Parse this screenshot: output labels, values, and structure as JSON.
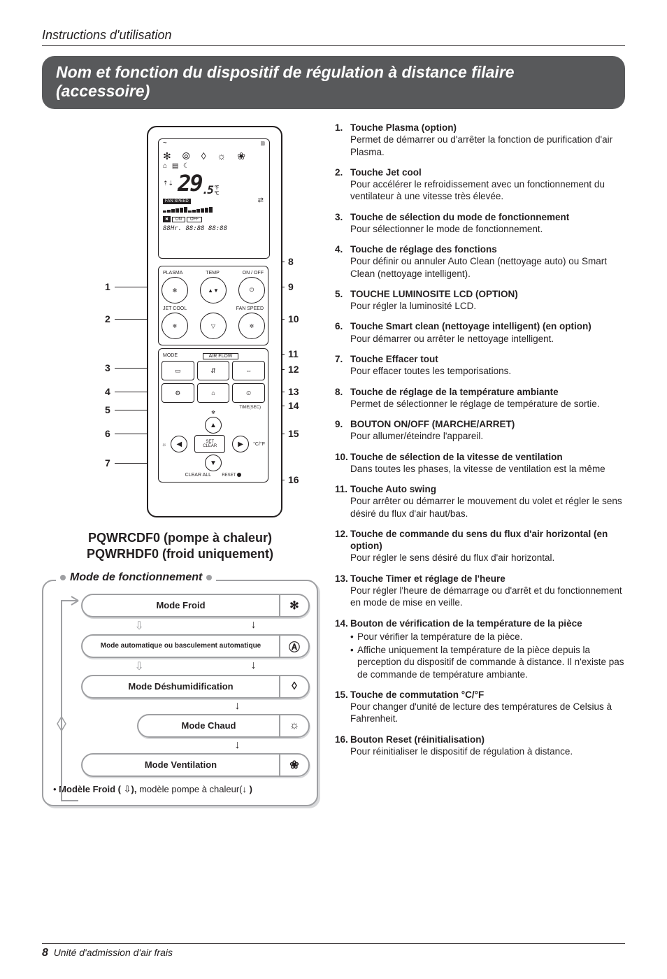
{
  "page_header": "Instructions d'utilisation",
  "banner": "Nom et fonction du dispositif de régulation à distance filaire (accessoire)",
  "remote": {
    "screen": {
      "top_left_glyph": "⏦",
      "batt_glyph": "▥",
      "icon_row": "✻ ⦾ ◊ ☼ ❀",
      "icon_row2": "⌂ ▤ ☾",
      "updown": "⇡⇣",
      "temp_main": "29",
      "temp_dec": ".5",
      "temp_unit_f": "°F",
      "temp_unit_c": "°C",
      "fanspeed_label": "FAN SPEED",
      "swap_glyph": "⇄",
      "onoff_black": "✖",
      "on_label": "ON",
      "off_label": "OFF",
      "digits_line": "88Hr. 88:88 88:88"
    },
    "upper_panel": {
      "lbl_left": "PLASMA",
      "lbl_temp": "TEMP",
      "lbl_right": "ON / OFF",
      "btn_plasma": "✻",
      "btn_temp": "▲▼",
      "btn_power": "⏻",
      "lbl_jet": "JET COOL",
      "lbl_fan": "FAN SPEED",
      "btn_jet": "❄",
      "btn_down": "▽",
      "btn_fan": "✲"
    },
    "lower_panel": {
      "lbl_mode": "MODE",
      "lbl_airflow": "AIR FLOW",
      "btn_mode": "▭",
      "btn_updown": "⇵",
      "btn_lr": "⇔",
      "btn_func": "⚙",
      "btn_room": "⌂",
      "btn_timer": "⏲",
      "lbl_timer": "TIME(SEC)",
      "nav_up": "▲",
      "nav_down": "▼",
      "nav_left": "◀",
      "nav_right": "▶",
      "set": "SET",
      "clear": "CLEAR",
      "temp_unit": "°C/°F",
      "light": "☼",
      "clearall": "CLEAR ALL",
      "reset": "RESET"
    },
    "leaders_left": [
      "1",
      "2",
      "3",
      "4",
      "5",
      "6",
      "7"
    ],
    "leaders_right": [
      "8",
      "9",
      "10",
      "11",
      "12",
      "13",
      "14",
      "15",
      "16"
    ]
  },
  "subtitle_line1": "PQWRCDF0 (pompe à chaleur)",
  "subtitle_line2": "PQWRHDF0 (froid uniquement)",
  "mode_legend": "Mode de fonctionnement",
  "modes": {
    "froid": "Mode Froid",
    "auto": "Mode automatique ou basculement automatique",
    "deshum": "Mode Déshumidification",
    "chaud": "Mode Chaud",
    "ventil": "Mode Ventilation",
    "icon_froid": "✻",
    "icon_auto": "Ⓐ",
    "icon_deshum": "◊",
    "icon_chaud": "☼",
    "icon_ventil": "❀"
  },
  "arrows": {
    "down_open": "⇩",
    "down_solid": "↓",
    "half_down": "↳"
  },
  "mode_footnote_prefix": "• ",
  "mode_footnote_bold1": "Modèle Froid (",
  "mode_footnote_glyph1": " ⇩",
  "mode_footnote_mid": "), ",
  "mode_footnote_bold2": "modèle pompe à chaleur(",
  "mode_footnote_glyph2": "↓",
  "mode_footnote_end": " )",
  "items": [
    {
      "n": "1.",
      "t": "Touche Plasma (option)",
      "d": "Permet de démarrer ou d'arrêter la fonction de purification d'air Plasma."
    },
    {
      "n": "2.",
      "t": "Touche Jet cool",
      "d": "Pour accélérer le refroidissement avec un fonctionnement du ventilateur à une vitesse très élevée."
    },
    {
      "n": "3.",
      "t": "Touche de sélection du mode de fonctionnement",
      "d": "Pour sélectionner le mode de fonctionnement."
    },
    {
      "n": "4.",
      "t": "Touche de réglage des fonctions",
      "d": "Pour définir ou annuler Auto Clean (nettoyage auto) ou Smart Clean (nettoyage intelligent)."
    },
    {
      "n": "5.",
      "t": "TOUCHE LUMINOSITE LCD (OPTION)",
      "d": "Pour régler la luminosité LCD."
    },
    {
      "n": "6.",
      "t": "Touche Smart clean (nettoyage intelligent) (en option)",
      "d": "Pour démarrer ou arrêter le nettoyage intelligent."
    },
    {
      "n": "7.",
      "t": "Touche Effacer tout",
      "d": "Pour effacer toutes les temporisations."
    },
    {
      "n": "8.",
      "t": "Touche de réglage de la température ambiante",
      "d": "Permet de sélectionner le réglage de température de sortie."
    },
    {
      "n": "9.",
      "t": "BOUTON ON/OFF (MARCHE/ARRET)",
      "d": "Pour allumer/éteindre l'appareil."
    },
    {
      "n": "10.",
      "t": "Touche de sélection de la vitesse de ventilation",
      "d": "Dans toutes les phases, la vitesse de ventilation est la même"
    },
    {
      "n": "11.",
      "t": "Touche Auto swing",
      "d": "Pour arrêter ou démarrer le mouvement du volet et régler le sens désiré du flux d'air haut/bas."
    },
    {
      "n": "12.",
      "t": "Touche de commande du sens du flux d'air horizontal (en option)",
      "d": "Pour régler le sens désiré du flux d'air horizontal."
    },
    {
      "n": "13.",
      "t": "Touche Timer et réglage de l'heure",
      "d": "Pour régler l'heure de démarrage ou d'arrêt et du fonctionnement en mode de mise en veille."
    },
    {
      "n": "14.",
      "t": "Bouton de vérification de la température de la pièce",
      "subs": [
        "Pour vérifier la température de la pièce.",
        "Affiche uniquement la température de la pièce depuis la perception du dispositif de commande à distance. Il n'existe pas de commande de température ambiante."
      ]
    },
    {
      "n": "15.",
      "t": "Touche de commutation °C/°F",
      "d": "Pour changer d'unité de lecture des températures de Celsius à Fahrenheit."
    },
    {
      "n": "16.",
      "t": "Bouton Reset (réinitialisation)",
      "d": "Pour réinitialiser le dispositif de régulation à distance."
    }
  ],
  "footer_page": "8",
  "footer_text": "Unité d'admission d'air frais"
}
